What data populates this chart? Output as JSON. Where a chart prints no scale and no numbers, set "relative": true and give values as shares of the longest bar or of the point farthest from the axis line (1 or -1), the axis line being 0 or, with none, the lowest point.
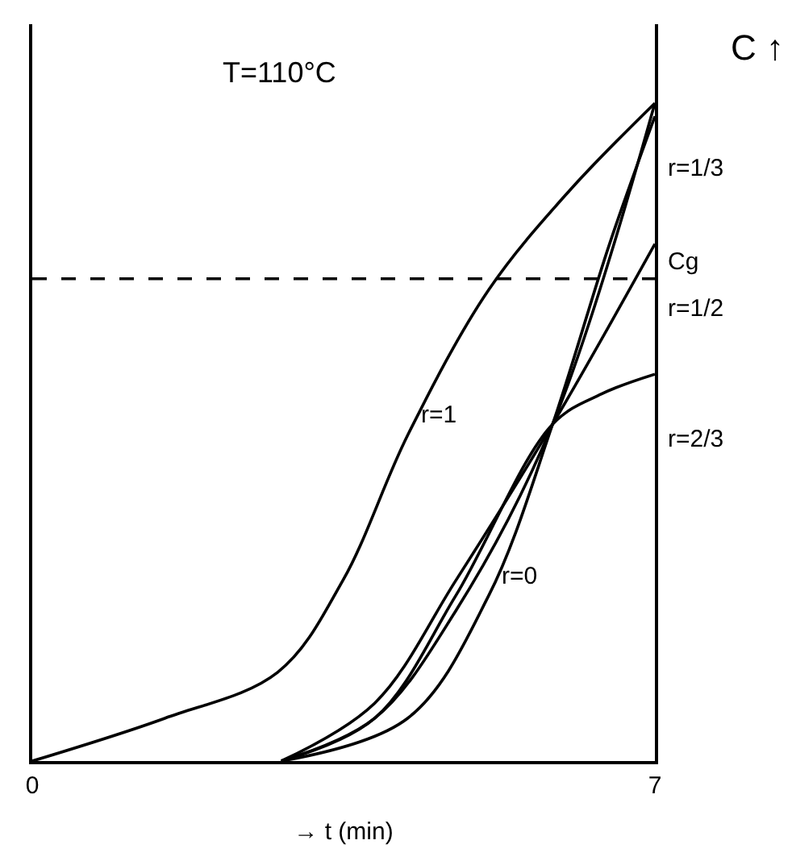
{
  "chart_data": {
    "type": "line",
    "title": "T=110°C",
    "xlabel": "→ t (min)",
    "ylabel": "C ↑",
    "relative": true,
    "xlim": [
      0,
      7
    ],
    "xticks": [
      0,
      7
    ],
    "marker": "none",
    "series": [
      {
        "color": "#000000",
        "x": [
          0,
          1.49,
          2.76,
          3.49,
          4.22,
          5.13,
          6.04,
          7
        ],
        "values": [
          0,
          0.065,
          0.135,
          0.274,
          0.495,
          0.716,
          0.867,
          1
        ]
      },
      {
        "color": "#000000",
        "x": [
          2.8,
          3.85,
          4.76,
          5.85,
          7
        ],
        "values": [
          0,
          0.065,
          0.228,
          0.512,
          1
        ]
      },
      {
        "color": "#000000",
        "x": [
          2.8,
          3.85,
          4.76,
          5.85,
          7
        ],
        "values": [
          0,
          0.088,
          0.274,
          0.512,
          0.786
        ]
      },
      {
        "color": "#000000",
        "x": [
          2.8,
          3.85,
          4.76,
          5.85,
          6.4,
          7
        ],
        "values": [
          0,
          0.065,
          0.251,
          0.512,
          0.558,
          0.588
        ]
      },
      {
        "color": "#000000",
        "x": [
          2.8,
          4.22,
          5.13,
          5.85,
          6.49,
          7
        ],
        "values": [
          0,
          0.065,
          0.251,
          0.512,
          0.786,
          0.98
        ]
      }
    ],
    "ref_lines": [
      {
        "axis": "y",
        "value": 0.733,
        "label": "Cg",
        "line_style": "dashed",
        "color": "#000000"
      }
    ],
    "annotations": [
      {
        "text": "r=1",
        "x": 4.22,
        "y": 0.495
      },
      {
        "text": "r=1/3",
        "x": 7,
        "y": 1
      },
      {
        "text": "r=1/2",
        "x": 7,
        "y": 0.786
      },
      {
        "text": "r=2/3",
        "x": 7,
        "y": 0.588
      },
      {
        "text": "r=0",
        "x": 5.13,
        "y": 0.251
      }
    ]
  }
}
